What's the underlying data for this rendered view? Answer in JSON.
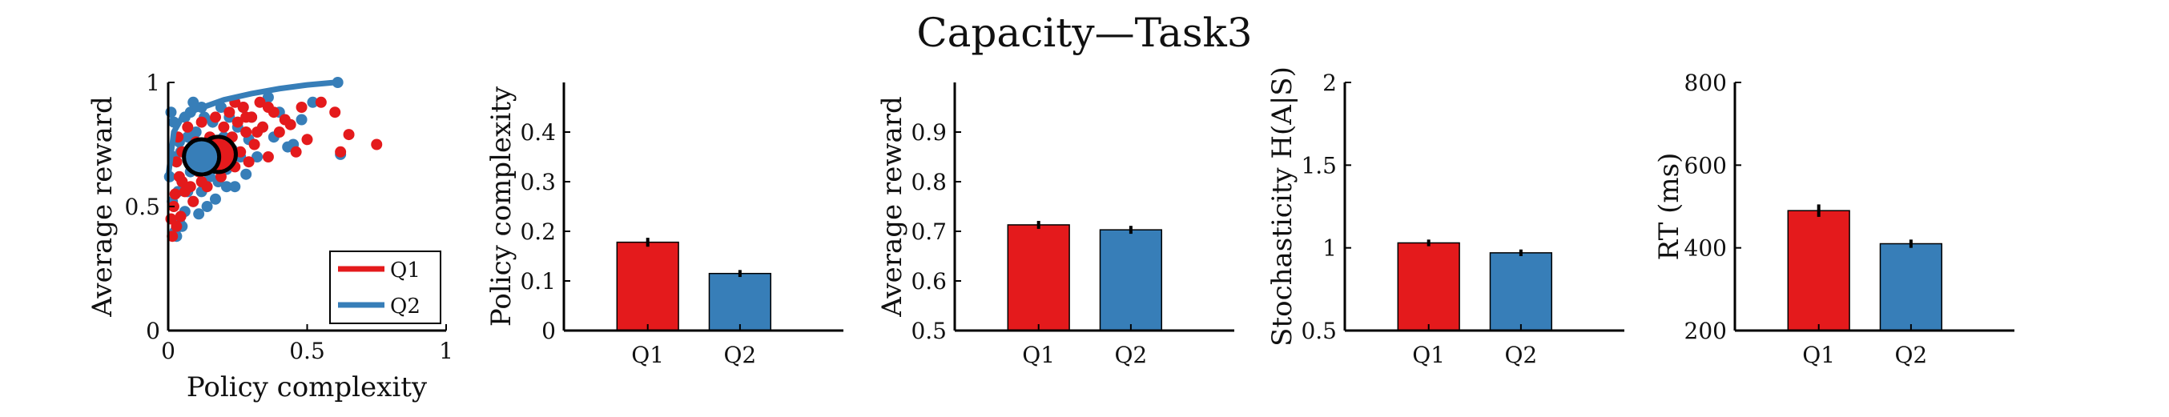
{
  "figure": {
    "title": "Capacity—Task3"
  },
  "colors": {
    "Q1": "#e41a1c",
    "Q2": "#377eb8"
  },
  "chart_data": [
    {
      "type": "scatter",
      "xlabel": "Policy complexity",
      "ylabel": "Average reward",
      "xlim": [
        0,
        1
      ],
      "ylim": [
        0,
        1
      ],
      "xticks": [
        "0",
        "0.5",
        "1"
      ],
      "yticks": [
        "0",
        "0.5",
        "1"
      ],
      "legend_position": "bottom-right",
      "series": [
        {
          "name": "Q1",
          "points": [
            [
              0.75,
              0.75
            ],
            [
              0.65,
              0.79
            ],
            [
              0.62,
              0.72
            ],
            [
              0.6,
              0.88
            ],
            [
              0.55,
              0.92
            ],
            [
              0.5,
              0.77
            ],
            [
              0.48,
              0.9
            ],
            [
              0.46,
              0.72
            ],
            [
              0.44,
              0.83
            ],
            [
              0.42,
              0.85
            ],
            [
              0.4,
              0.8
            ],
            [
              0.38,
              0.88
            ],
            [
              0.36,
              0.7
            ],
            [
              0.34,
              0.82
            ],
            [
              0.33,
              0.92
            ],
            [
              0.31,
              0.75
            ],
            [
              0.3,
              0.86
            ],
            [
              0.29,
              0.68
            ],
            [
              0.28,
              0.8
            ],
            [
              0.27,
              0.9
            ],
            [
              0.26,
              0.72
            ],
            [
              0.25,
              0.84
            ],
            [
              0.24,
              0.66
            ],
            [
              0.23,
              0.78
            ],
            [
              0.22,
              0.88
            ],
            [
              0.21,
              0.7
            ],
            [
              0.2,
              0.82
            ],
            [
              0.19,
              0.62
            ],
            [
              0.18,
              0.74
            ],
            [
              0.17,
              0.86
            ],
            [
              0.16,
              0.66
            ],
            [
              0.15,
              0.78
            ],
            [
              0.14,
              0.58
            ],
            [
              0.13,
              0.72
            ],
            [
              0.12,
              0.84
            ],
            [
              0.11,
              0.64
            ],
            [
              0.1,
              0.76
            ],
            [
              0.09,
              0.52
            ],
            [
              0.08,
              0.68
            ],
            [
              0.07,
              0.82
            ],
            [
              0.06,
              0.56
            ],
            [
              0.05,
              0.72
            ],
            [
              0.045,
              0.46
            ],
            [
              0.04,
              0.62
            ],
            [
              0.035,
              0.78
            ],
            [
              0.03,
              0.42
            ],
            [
              0.025,
              0.55
            ],
            [
              0.02,
              0.5
            ],
            [
              0.015,
              0.38
            ],
            [
              0.01,
              0.45
            ],
            [
              0.03,
              0.68
            ],
            [
              0.05,
              0.6
            ],
            [
              0.08,
              0.58
            ],
            [
              0.12,
              0.6
            ],
            [
              0.16,
              0.76
            ],
            [
              0.2,
              0.68
            ],
            [
              0.24,
              0.92
            ],
            [
              0.28,
              0.86
            ],
            [
              0.32,
              0.8
            ],
            [
              0.36,
              0.9
            ]
          ],
          "mean": [
            0.18,
            0.71
          ]
        },
        {
          "name": "Q2",
          "points": [
            [
              0.61,
              1.0
            ],
            [
              0.62,
              0.71
            ],
            [
              0.52,
              0.92
            ],
            [
              0.48,
              0.85
            ],
            [
              0.45,
              0.75
            ],
            [
              0.43,
              0.74
            ],
            [
              0.4,
              0.88
            ],
            [
              0.38,
              0.78
            ],
            [
              0.36,
              0.94
            ],
            [
              0.34,
              0.82
            ],
            [
              0.32,
              0.7
            ],
            [
              0.3,
              0.86
            ],
            [
              0.29,
              0.77
            ],
            [
              0.28,
              0.63
            ],
            [
              0.27,
              0.9
            ],
            [
              0.26,
              0.7
            ],
            [
              0.25,
              0.82
            ],
            [
              0.24,
              0.58
            ],
            [
              0.23,
              0.73
            ],
            [
              0.22,
              0.86
            ],
            [
              0.21,
              0.65
            ],
            [
              0.2,
              0.78
            ],
            [
              0.19,
              0.9
            ],
            [
              0.18,
              0.6
            ],
            [
              0.17,
              0.72
            ],
            [
              0.16,
              0.84
            ],
            [
              0.15,
              0.62
            ],
            [
              0.14,
              0.74
            ],
            [
              0.13,
              0.86
            ],
            [
              0.12,
              0.56
            ],
            [
              0.11,
              0.68
            ],
            [
              0.1,
              0.8
            ],
            [
              0.09,
              0.52
            ],
            [
              0.08,
              0.64
            ],
            [
              0.07,
              0.78
            ],
            [
              0.06,
              0.48
            ],
            [
              0.05,
              0.6
            ],
            [
              0.045,
              0.72
            ],
            [
              0.04,
              0.44
            ],
            [
              0.035,
              0.56
            ],
            [
              0.03,
              0.68
            ],
            [
              0.025,
              0.4
            ],
            [
              0.02,
              0.84
            ],
            [
              0.015,
              0.52
            ],
            [
              0.01,
              0.88
            ],
            [
              0.005,
              0.62
            ],
            [
              0.06,
              0.86
            ],
            [
              0.09,
              0.92
            ],
            [
              0.11,
              0.47
            ],
            [
              0.14,
              0.5
            ],
            [
              0.17,
              0.53
            ],
            [
              0.21,
              0.58
            ],
            [
              0.03,
              0.38
            ],
            [
              0.05,
              0.42
            ],
            [
              0.02,
              0.7
            ],
            [
              0.08,
              0.88
            ],
            [
              0.12,
              0.9
            ],
            [
              0.1,
              0.66
            ],
            [
              0.07,
              0.56
            ],
            [
              0.04,
              0.76
            ]
          ],
          "mean": [
            0.12,
            0.7
          ]
        }
      ],
      "fit_line": [
        [
          0.0,
          0.62
        ],
        [
          0.02,
          0.8
        ],
        [
          0.05,
          0.86
        ],
        [
          0.1,
          0.89
        ],
        [
          0.15,
          0.91
        ],
        [
          0.2,
          0.93
        ],
        [
          0.3,
          0.955
        ],
        [
          0.4,
          0.975
        ],
        [
          0.5,
          0.99
        ],
        [
          0.6,
          1.0
        ]
      ]
    },
    {
      "type": "bar",
      "ylabel": "Policy complexity",
      "categories": [
        "Q1",
        "Q2"
      ],
      "values": [
        0.178,
        0.115
      ],
      "errors": [
        0.009,
        0.007
      ],
      "ylim": [
        0,
        0.5
      ],
      "yticks": [
        "0",
        "0.1",
        "0.2",
        "0.3",
        "0.4"
      ]
    },
    {
      "type": "bar",
      "ylabel": "Average reward",
      "categories": [
        "Q1",
        "Q2"
      ],
      "values": [
        0.713,
        0.703
      ],
      "errors": [
        0.008,
        0.008
      ],
      "ylim": [
        0.5,
        1.0
      ],
      "yticks": [
        "0.5",
        "0.6",
        "0.7",
        "0.8",
        "0.9"
      ]
    },
    {
      "type": "bar",
      "ylabel": "Stochasticity H(A|S)",
      "categories": [
        "Q1",
        "Q2"
      ],
      "values": [
        1.03,
        0.97
      ],
      "errors": [
        0.02,
        0.02
      ],
      "ylim": [
        0.5,
        2
      ],
      "yticks": [
        "0.5",
        "1",
        "1.5",
        "2"
      ]
    },
    {
      "type": "bar",
      "ylabel": "RT (ms)",
      "categories": [
        "Q1",
        "Q2"
      ],
      "values": [
        490,
        410
      ],
      "errors": [
        15,
        10
      ],
      "ylim": [
        200,
        800
      ],
      "yticks": [
        "200",
        "400",
        "600",
        "800"
      ]
    }
  ]
}
